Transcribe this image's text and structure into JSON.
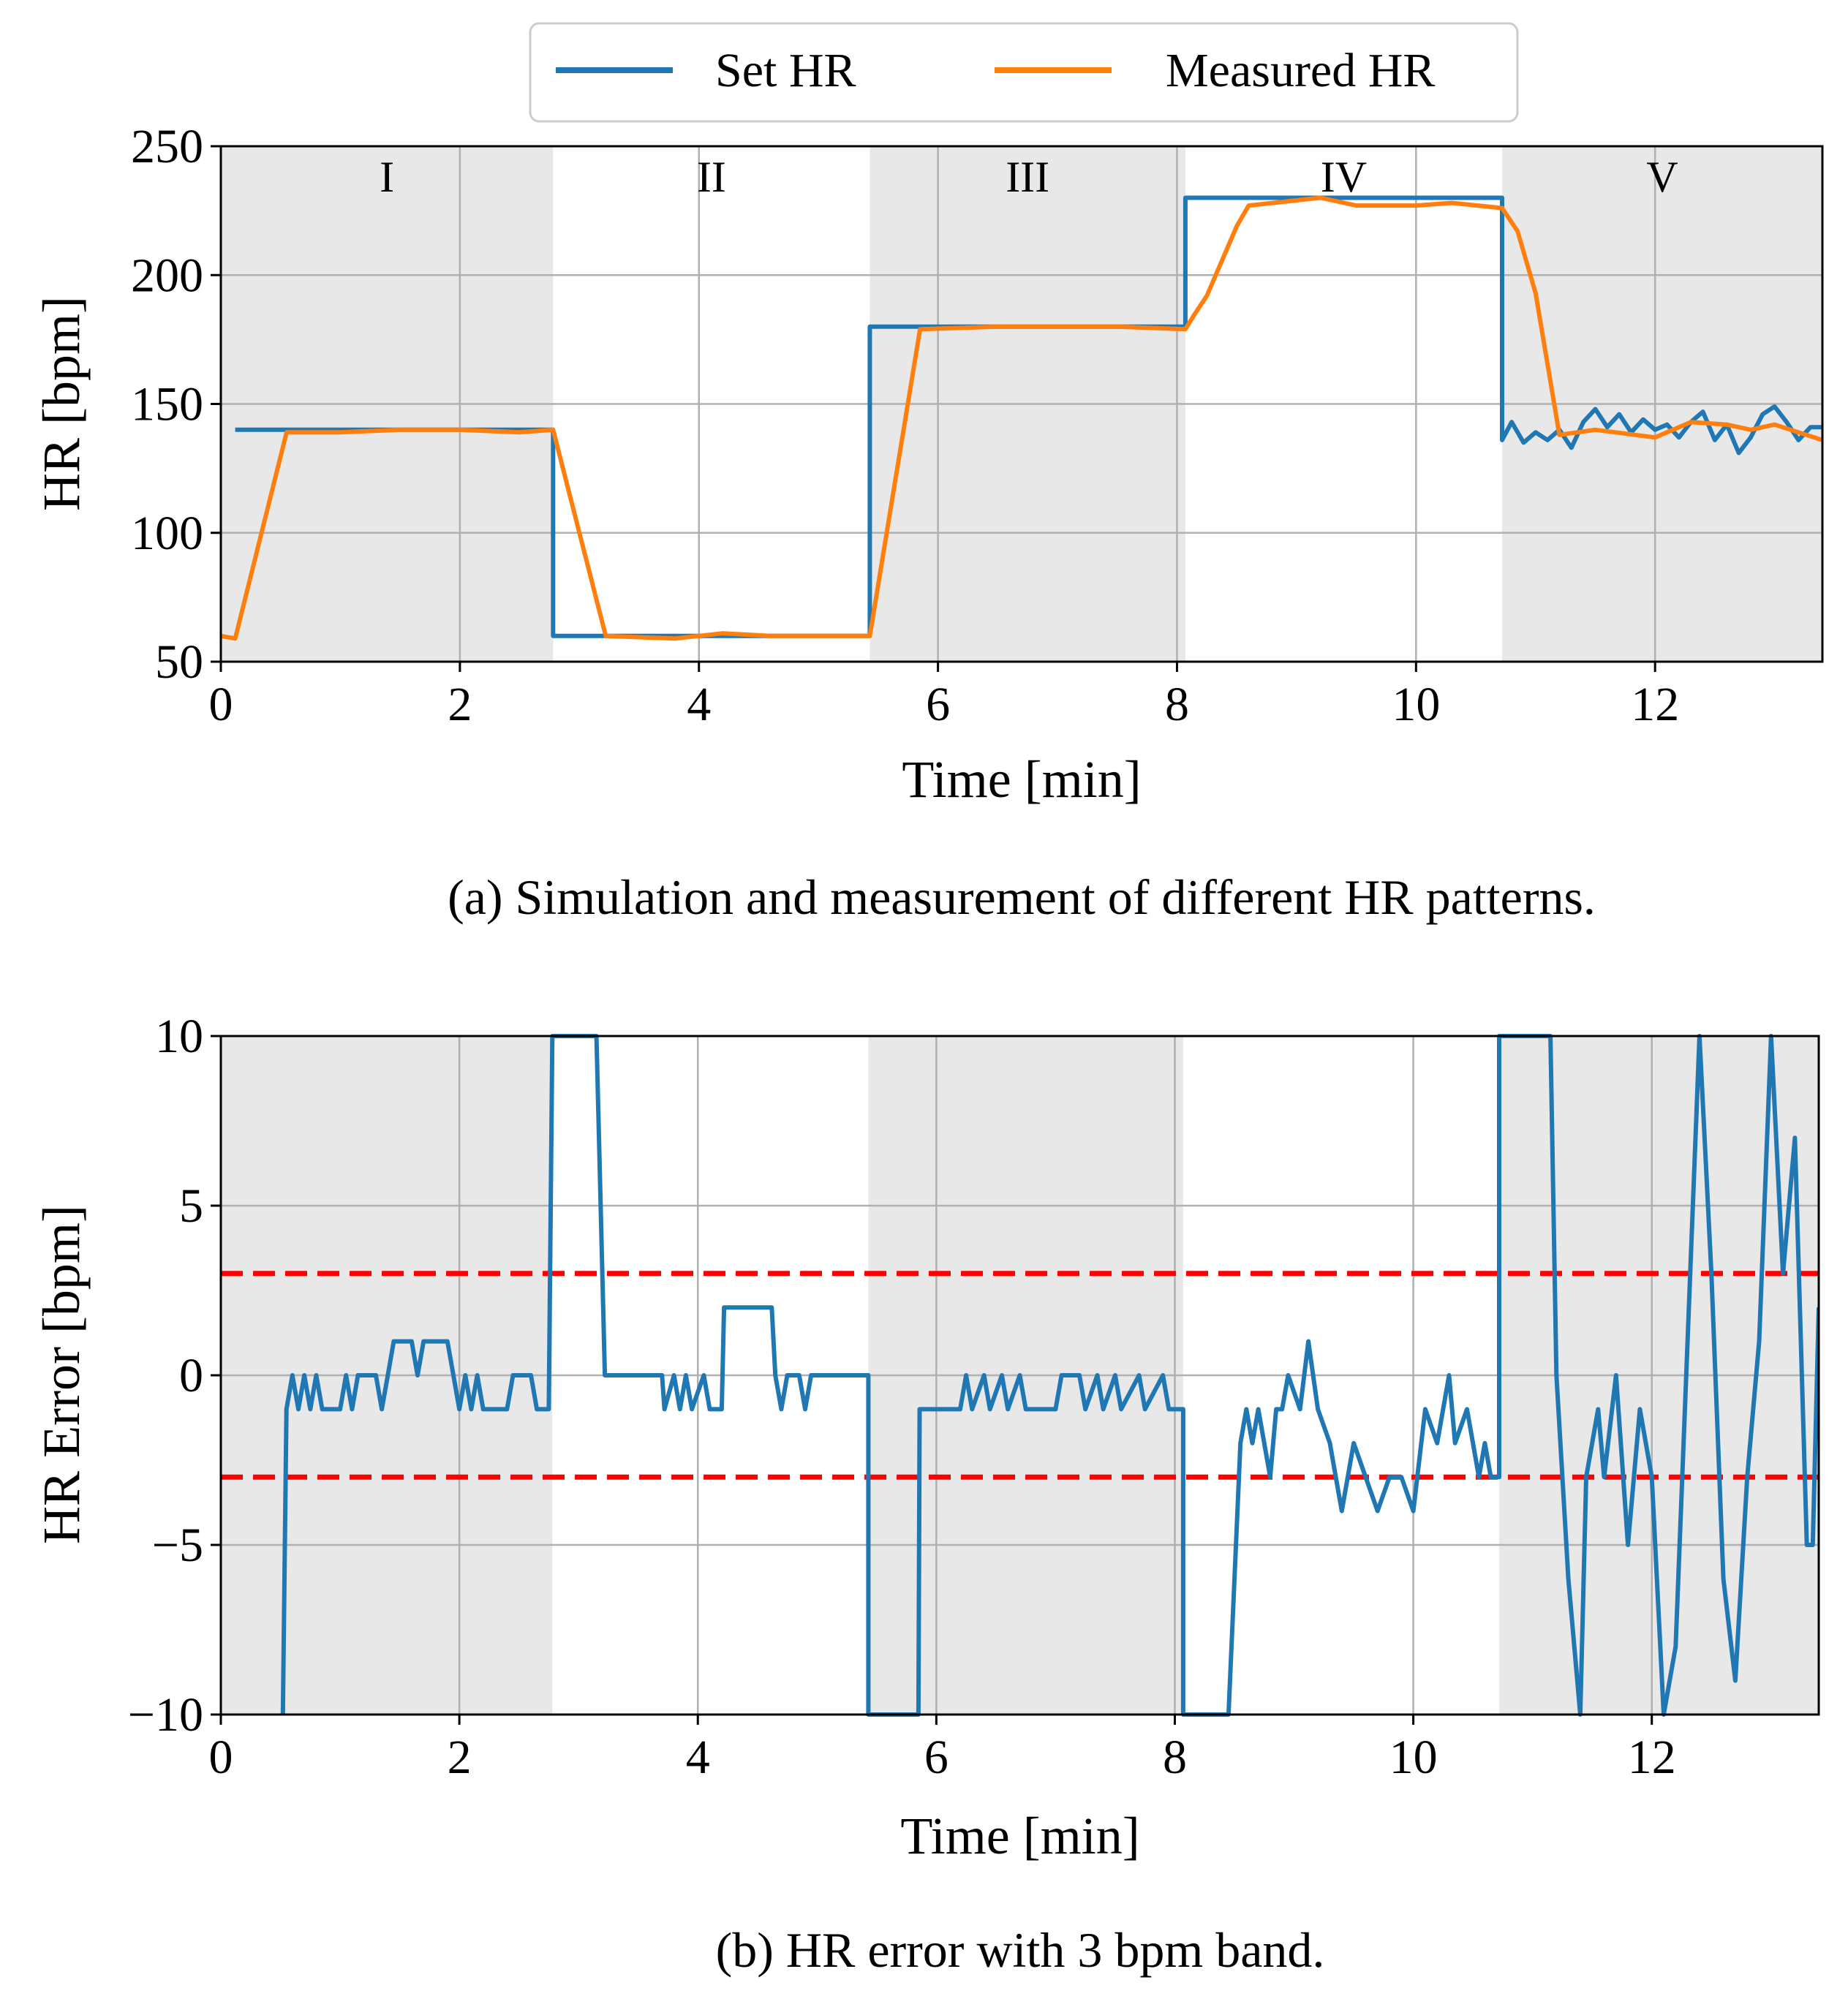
{
  "legend": {
    "entries": [
      {
        "label": "Set HR",
        "color": "#1f77b4"
      },
      {
        "label": "Measured HR",
        "color": "#ff7f0e"
      }
    ]
  },
  "colors": {
    "set_hr": "#1f77b4",
    "measured_hr": "#ff7f0e",
    "error": "#1f77b4",
    "band": "#ff0000",
    "shade": "#e8e8e8",
    "grid": "#b0b0b0"
  },
  "chart_data": [
    {
      "type": "line",
      "caption": "(a) Simulation and measurement of different HR patterns.",
      "xlabel": "Time [min]",
      "ylabel": "HR [bpm]",
      "xlim": [
        0,
        13.4
      ],
      "ylim": [
        50,
        250
      ],
      "xticks": [
        0,
        2,
        4,
        6,
        8,
        10,
        12
      ],
      "yticks": [
        50,
        100,
        150,
        200,
        250
      ],
      "grid": true,
      "legend_placement": "top-center",
      "regions": [
        {
          "label": "I",
          "x": [
            0,
            2.78
          ],
          "shaded": true
        },
        {
          "label": "II",
          "x": [
            2.78,
            5.43
          ],
          "shaded": false
        },
        {
          "label": "III",
          "x": [
            5.43,
            8.07
          ],
          "shaded": true
        },
        {
          "label": "IV",
          "x": [
            8.07,
            10.72
          ],
          "shaded": false
        },
        {
          "label": "V",
          "x": [
            10.72,
            13.4
          ],
          "shaded": true
        }
      ],
      "series": [
        {
          "name": "Set HR",
          "points": [
            [
              0.12,
              140
            ],
            [
              2.78,
              140
            ],
            [
              2.78,
              60
            ],
            [
              5.43,
              60
            ],
            [
              5.43,
              180
            ],
            [
              8.07,
              180
            ],
            [
              8.07,
              230
            ],
            [
              10.72,
              230
            ],
            [
              10.72,
              136
            ],
            [
              10.8,
              143
            ],
            [
              10.9,
              135
            ],
            [
              11.0,
              139
            ],
            [
              11.1,
              136
            ],
            [
              11.2,
              140
            ],
            [
              11.3,
              133
            ],
            [
              11.4,
              143
            ],
            [
              11.5,
              148
            ],
            [
              11.6,
              141
            ],
            [
              11.7,
              146
            ],
            [
              11.8,
              139
            ],
            [
              11.9,
              144
            ],
            [
              12.0,
              140
            ],
            [
              12.1,
              142
            ],
            [
              12.2,
              137
            ],
            [
              12.3,
              143
            ],
            [
              12.4,
              147
            ],
            [
              12.5,
              136
            ],
            [
              12.6,
              142
            ],
            [
              12.7,
              131
            ],
            [
              12.8,
              137
            ],
            [
              12.9,
              146
            ],
            [
              13.0,
              149
            ],
            [
              13.1,
              143
            ],
            [
              13.2,
              136
            ],
            [
              13.3,
              141
            ],
            [
              13.4,
              141
            ]
          ]
        },
        {
          "name": "Measured HR",
          "points": [
            [
              0,
              60
            ],
            [
              0.12,
              59
            ],
            [
              0.55,
              139
            ],
            [
              1.0,
              139
            ],
            [
              1.5,
              140
            ],
            [
              2.0,
              140
            ],
            [
              2.5,
              139
            ],
            [
              2.78,
              140
            ],
            [
              3.22,
              60
            ],
            [
              3.8,
              59
            ],
            [
              4.2,
              61
            ],
            [
              4.6,
              60
            ],
            [
              5.0,
              60
            ],
            [
              5.43,
              60
            ],
            [
              5.85,
              179
            ],
            [
              6.5,
              180
            ],
            [
              7.0,
              180
            ],
            [
              7.5,
              180
            ],
            [
              8.07,
              179
            ],
            [
              8.15,
              185
            ],
            [
              8.25,
              192
            ],
            [
              8.5,
              219
            ],
            [
              8.6,
              227
            ],
            [
              9.0,
              229
            ],
            [
              9.2,
              230
            ],
            [
              9.5,
              227
            ],
            [
              10.0,
              227
            ],
            [
              10.3,
              228
            ],
            [
              10.72,
              226
            ],
            [
              10.85,
              217
            ],
            [
              11.0,
              193
            ],
            [
              11.2,
              138
            ],
            [
              11.5,
              140
            ],
            [
              12.0,
              137
            ],
            [
              12.3,
              143
            ],
            [
              12.6,
              142
            ],
            [
              12.8,
              140
            ],
            [
              13.0,
              142
            ],
            [
              13.2,
              139
            ],
            [
              13.4,
              136
            ]
          ]
        }
      ]
    },
    {
      "type": "line",
      "caption": "(b) HR error with 3 bpm band.",
      "xlabel": "Time [min]",
      "ylabel": "HR Error [bpm]",
      "xlim": [
        0,
        13.4
      ],
      "ylim": [
        -10,
        10
      ],
      "xticks": [
        0,
        2,
        4,
        6,
        8,
        10,
        12
      ],
      "yticks": [
        -10,
        -5,
        0,
        5,
        10
      ],
      "ytick_labels": [
        "−10",
        "−5",
        "0",
        "5",
        "10"
      ],
      "grid": true,
      "shaded_regions": [
        [
          0,
          2.78
        ],
        [
          5.43,
          8.07
        ],
        [
          10.72,
          13.4
        ]
      ],
      "band": [
        -3,
        3
      ],
      "series": [
        {
          "name": "HR Error",
          "points": [
            [
              0.52,
              -10
            ],
            [
              0.55,
              -1
            ],
            [
              0.6,
              0
            ],
            [
              0.65,
              -1
            ],
            [
              0.7,
              0
            ],
            [
              0.75,
              -1
            ],
            [
              0.8,
              0
            ],
            [
              0.85,
              -1
            ],
            [
              1.0,
              -1
            ],
            [
              1.05,
              0
            ],
            [
              1.1,
              -1
            ],
            [
              1.15,
              0
            ],
            [
              1.3,
              0
            ],
            [
              1.35,
              -1
            ],
            [
              1.4,
              0
            ],
            [
              1.45,
              1
            ],
            [
              1.6,
              1
            ],
            [
              1.65,
              0
            ],
            [
              1.7,
              1
            ],
            [
              1.9,
              1
            ],
            [
              1.95,
              0
            ],
            [
              2.0,
              -1
            ],
            [
              2.05,
              0
            ],
            [
              2.1,
              -1
            ],
            [
              2.15,
              0
            ],
            [
              2.2,
              -1
            ],
            [
              2.4,
              -1
            ],
            [
              2.45,
              0
            ],
            [
              2.6,
              0
            ],
            [
              2.65,
              -1
            ],
            [
              2.75,
              -1
            ],
            [
              2.78,
              10
            ],
            [
              3.15,
              10
            ],
            [
              3.22,
              0
            ],
            [
              3.7,
              0
            ],
            [
              3.72,
              -1
            ],
            [
              3.8,
              0
            ],
            [
              3.85,
              -1
            ],
            [
              3.9,
              0
            ],
            [
              3.95,
              -1
            ],
            [
              4.05,
              0
            ],
            [
              4.1,
              -1
            ],
            [
              4.2,
              -1
            ],
            [
              4.22,
              2
            ],
            [
              4.62,
              2
            ],
            [
              4.65,
              0
            ],
            [
              4.7,
              -1
            ],
            [
              4.75,
              0
            ],
            [
              4.85,
              0
            ],
            [
              4.9,
              -1
            ],
            [
              4.95,
              0
            ],
            [
              5.43,
              0
            ],
            [
              5.43,
              -10
            ],
            [
              5.85,
              -10
            ],
            [
              5.86,
              -1
            ],
            [
              6.2,
              -1
            ],
            [
              6.25,
              0
            ],
            [
              6.3,
              -1
            ],
            [
              6.4,
              0
            ],
            [
              6.45,
              -1
            ],
            [
              6.55,
              0
            ],
            [
              6.6,
              -1
            ],
            [
              6.7,
              0
            ],
            [
              6.75,
              -1
            ],
            [
              7.0,
              -1
            ],
            [
              7.05,
              0
            ],
            [
              7.2,
              0
            ],
            [
              7.25,
              -1
            ],
            [
              7.35,
              0
            ],
            [
              7.4,
              -1
            ],
            [
              7.5,
              0
            ],
            [
              7.55,
              -1
            ],
            [
              7.7,
              0
            ],
            [
              7.75,
              -1
            ],
            [
              7.9,
              0
            ],
            [
              7.95,
              -1
            ],
            [
              8.07,
              -1
            ],
            [
              8.07,
              -10
            ],
            [
              8.45,
              -10
            ],
            [
              8.55,
              -2
            ],
            [
              8.6,
              -1
            ],
            [
              8.65,
              -2
            ],
            [
              8.7,
              -1
            ],
            [
              8.8,
              -3
            ],
            [
              8.85,
              -1
            ],
            [
              8.9,
              -1
            ],
            [
              8.95,
              0
            ],
            [
              9.05,
              -1
            ],
            [
              9.12,
              1
            ],
            [
              9.2,
              -1
            ],
            [
              9.3,
              -2
            ],
            [
              9.35,
              -3
            ],
            [
              9.4,
              -4
            ],
            [
              9.5,
              -2
            ],
            [
              9.6,
              -3
            ],
            [
              9.7,
              -4
            ],
            [
              9.8,
              -3
            ],
            [
              9.9,
              -3
            ],
            [
              10.0,
              -4
            ],
            [
              10.1,
              -1
            ],
            [
              10.2,
              -2
            ],
            [
              10.3,
              0
            ],
            [
              10.35,
              -2
            ],
            [
              10.45,
              -1
            ],
            [
              10.55,
              -3
            ],
            [
              10.6,
              -2
            ],
            [
              10.65,
              -3
            ],
            [
              10.72,
              -3
            ],
            [
              10.72,
              10
            ],
            [
              11.15,
              10
            ],
            [
              11.2,
              0
            ],
            [
              11.3,
              -6
            ],
            [
              11.4,
              -10
            ],
            [
              11.45,
              -3
            ],
            [
              11.55,
              -1
            ],
            [
              11.6,
              -3
            ],
            [
              11.7,
              0
            ],
            [
              11.8,
              -5
            ],
            [
              11.9,
              -1
            ],
            [
              12.0,
              -3
            ],
            [
              12.1,
              -10
            ],
            [
              12.2,
              -8
            ],
            [
              12.3,
              1
            ],
            [
              12.4,
              10
            ],
            [
              12.5,
              3
            ],
            [
              12.6,
              -6
            ],
            [
              12.7,
              -9
            ],
            [
              12.8,
              -3
            ],
            [
              12.9,
              1
            ],
            [
              13.0,
              10
            ],
            [
              13.1,
              3
            ],
            [
              13.2,
              7
            ],
            [
              13.3,
              -5
            ],
            [
              13.35,
              -5
            ],
            [
              13.4,
              2
            ]
          ]
        }
      ]
    }
  ]
}
